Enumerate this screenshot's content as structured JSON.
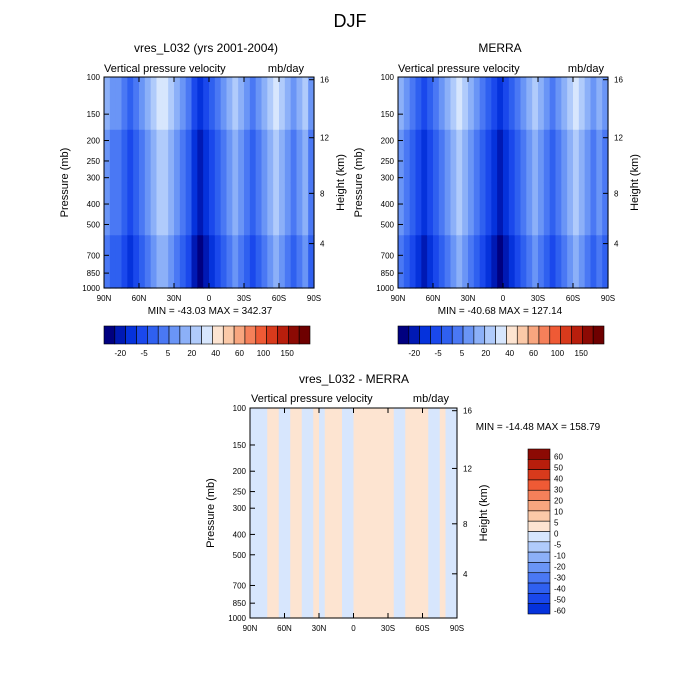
{
  "figure_title": "DJF",
  "chart_data": [
    {
      "type": "heatmap",
      "title": "vres_L032 (yrs 2001-2004)",
      "variable": "Vertical pressure velocity",
      "units": "mb/day",
      "ylabel": "Pressure (mb)",
      "y2label": "Height (km)",
      "x_ticks": [
        "90N",
        "60N",
        "30N",
        "0",
        "30S",
        "60S",
        "90S"
      ],
      "x_range": [
        90,
        -90
      ],
      "y_ticks": [
        100,
        150,
        200,
        250,
        300,
        400,
        500,
        700,
        850,
        1000
      ],
      "y_range": [
        100,
        1000
      ],
      "y_scale": "log",
      "y2_ticks": [
        16,
        12,
        8,
        4
      ],
      "stats": "MIN = -43.03   MAX = 342.37",
      "colorbar": {
        "orientation": "horizontal",
        "labels": [
          "-20",
          "-5",
          "5",
          "20",
          "40",
          "60",
          "100",
          "150"
        ],
        "levels": [
          -30,
          -25,
          -20,
          -15,
          -10,
          -5,
          0,
          5,
          10,
          20,
          30,
          40,
          50,
          60,
          80,
          100,
          125,
          150
        ],
        "colors": [
          "#000080",
          "#0019b4",
          "#0532dc",
          "#1a48ec",
          "#2f60f0",
          "#4a78f4",
          "#6a95f6",
          "#8cb0f8",
          "#b0cbfb",
          "#d7e6fd",
          "#fde4d1",
          "#fbc9a8",
          "#f8a67f",
          "#f5805a",
          "#ef5a35",
          "#d83a1c",
          "#b81e0c",
          "#8c0a04",
          "#6e0000"
        ]
      }
    },
    {
      "type": "heatmap",
      "title": "MERRA",
      "variable": "Vertical pressure velocity",
      "units": "mb/day",
      "ylabel": "Pressure (mb)",
      "y2label": "Height (km)",
      "x_ticks": [
        "90N",
        "60N",
        "30N",
        "0",
        "30S",
        "60S",
        "90S"
      ],
      "x_range": [
        90,
        -90
      ],
      "y_ticks": [
        100,
        150,
        200,
        250,
        300,
        400,
        500,
        700,
        850,
        1000
      ],
      "y_range": [
        100,
        1000
      ],
      "y_scale": "log",
      "y2_ticks": [
        16,
        12,
        8,
        4
      ],
      "stats": "MIN = -40.68   MAX = 127.14",
      "colorbar": {
        "orientation": "horizontal",
        "labels": [
          "-20",
          "-5",
          "5",
          "20",
          "40",
          "60",
          "100",
          "150"
        ],
        "levels": [
          -30,
          -25,
          -20,
          -15,
          -10,
          -5,
          0,
          5,
          10,
          20,
          30,
          40,
          50,
          60,
          80,
          100,
          125,
          150
        ],
        "colors": [
          "#000080",
          "#0019b4",
          "#0532dc",
          "#1a48ec",
          "#2f60f0",
          "#4a78f4",
          "#6a95f6",
          "#8cb0f8",
          "#b0cbfb",
          "#d7e6fd",
          "#fde4d1",
          "#fbc9a8",
          "#f8a67f",
          "#f5805a",
          "#ef5a35",
          "#d83a1c",
          "#b81e0c",
          "#8c0a04",
          "#6e0000"
        ]
      }
    },
    {
      "type": "heatmap",
      "title": "vres_L032 - MERRA",
      "variable": "Vertical pressure velocity",
      "units": "mb/day",
      "ylabel": "Pressure (mb)",
      "y2label": "Height (km)",
      "x_ticks": [
        "90N",
        "60N",
        "30N",
        "0",
        "30S",
        "60S",
        "90S"
      ],
      "x_range": [
        90,
        -90
      ],
      "y_ticks": [
        100,
        150,
        200,
        250,
        300,
        400,
        500,
        700,
        850,
        1000
      ],
      "y_range": [
        100,
        1000
      ],
      "y_scale": "log",
      "y2_ticks": [
        16,
        12,
        8,
        4
      ],
      "stats": "MIN = -14.48   MAX = 158.79",
      "colorbar": {
        "orientation": "vertical",
        "labels": [
          "60",
          "50",
          "40",
          "30",
          "20",
          "10",
          "5",
          "0",
          "-5",
          "-10",
          "-20",
          "-30",
          "-40",
          "-50",
          "-60"
        ],
        "colors": [
          "#8c0a04",
          "#b81e0c",
          "#d83a1c",
          "#ef5a35",
          "#f5805a",
          "#f8a67f",
          "#fbc9a8",
          "#fde4d1",
          "#d7e6fd",
          "#b0cbfb",
          "#8cb0f8",
          "#6a95f6",
          "#4a78f4",
          "#2f60f0",
          "#1a48ec",
          "#0532dc"
        ]
      }
    }
  ]
}
